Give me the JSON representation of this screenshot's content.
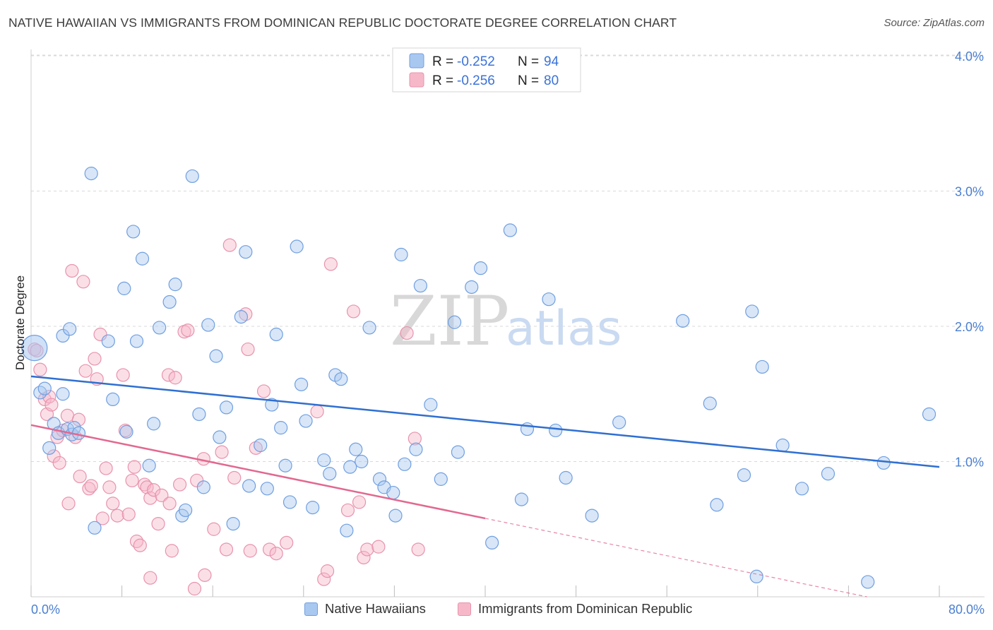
{
  "title": "NATIVE HAWAIIAN VS IMMIGRANTS FROM DOMINICAN REPUBLIC DOCTORATE DEGREE CORRELATION CHART",
  "source": "Source: ZipAtlas.com",
  "watermark": {
    "zip": "ZIP",
    "atlas": "atlas"
  },
  "colors": {
    "blue_fill": "#a9c8f0",
    "blue_stroke": "#6f9fe0",
    "blue_line": "#2f6fd1",
    "pink_fill": "#f6b8c9",
    "pink_stroke": "#e893ad",
    "pink_line": "#e2688f",
    "grid": "#d9d9d9",
    "tick_label": "#4a7fd0"
  },
  "legend": {
    "rows": [
      {
        "r_label": "R =",
        "r_value": "-0.252",
        "n_label": "N =",
        "n_value": "94"
      },
      {
        "r_label": "R =",
        "r_value": "-0.256",
        "n_label": "N =",
        "n_value": "80"
      }
    ]
  },
  "bottom_legend": {
    "series1": "Native Hawaiians",
    "series2": "Immigrants from Dominican Republic"
  },
  "chart_data": {
    "type": "scatter",
    "xlabel": "",
    "ylabel": "Doctorate Degree",
    "xlim": [
      0,
      80
    ],
    "ylim": [
      0,
      4.2
    ],
    "x_tick_labels": [
      "0.0%",
      "80.0%"
    ],
    "y_ticks": [
      1,
      2,
      3,
      4
    ],
    "y_tick_labels": [
      "1.0%",
      "2.0%",
      "3.0%",
      "4.0%"
    ],
    "grid": true,
    "series": [
      {
        "name": "Native Hawaiians",
        "r": -0.252,
        "n": 94,
        "trend": {
          "x0": 0,
          "y0": 1.63,
          "x1": 80,
          "y1": 0.96
        },
        "points": [
          [
            0.3,
            1.84
          ],
          [
            0.8,
            1.51
          ],
          [
            1.2,
            1.54
          ],
          [
            1.6,
            1.1
          ],
          [
            2.0,
            1.28
          ],
          [
            2.4,
            1.21
          ],
          [
            2.8,
            1.93
          ],
          [
            2.8,
            1.5
          ],
          [
            3.2,
            1.24
          ],
          [
            3.4,
            1.98
          ],
          [
            3.6,
            1.2
          ],
          [
            3.8,
            1.25
          ],
          [
            4.2,
            1.21
          ],
          [
            5.3,
            3.13
          ],
          [
            5.6,
            0.51
          ],
          [
            6.8,
            1.89
          ],
          [
            7.2,
            1.46
          ],
          [
            8.2,
            2.28
          ],
          [
            8.4,
            1.22
          ],
          [
            9.0,
            2.7
          ],
          [
            9.3,
            1.89
          ],
          [
            9.8,
            2.5
          ],
          [
            10.4,
            0.97
          ],
          [
            10.8,
            1.28
          ],
          [
            11.3,
            1.99
          ],
          [
            12.2,
            2.18
          ],
          [
            12.7,
            2.31
          ],
          [
            13.3,
            0.6
          ],
          [
            13.6,
            0.64
          ],
          [
            14.2,
            3.11
          ],
          [
            14.8,
            1.35
          ],
          [
            15.2,
            0.81
          ],
          [
            15.6,
            2.01
          ],
          [
            16.3,
            1.78
          ],
          [
            16.6,
            1.18
          ],
          [
            17.2,
            1.4
          ],
          [
            17.8,
            0.54
          ],
          [
            18.5,
            2.07
          ],
          [
            18.9,
            2.55
          ],
          [
            19.2,
            0.82
          ],
          [
            20.2,
            1.12
          ],
          [
            20.8,
            0.8
          ],
          [
            21.2,
            1.42
          ],
          [
            21.6,
            1.94
          ],
          [
            22.0,
            1.25
          ],
          [
            22.4,
            0.97
          ],
          [
            22.8,
            0.7
          ],
          [
            23.4,
            2.59
          ],
          [
            23.8,
            1.57
          ],
          [
            24.2,
            1.3
          ],
          [
            24.8,
            0.66
          ],
          [
            25.8,
            1.01
          ],
          [
            26.3,
            0.91
          ],
          [
            26.8,
            1.64
          ],
          [
            27.3,
            1.61
          ],
          [
            27.8,
            0.49
          ],
          [
            28.1,
            0.96
          ],
          [
            28.6,
            1.09
          ],
          [
            29.1,
            1.0
          ],
          [
            29.8,
            1.99
          ],
          [
            30.7,
            0.87
          ],
          [
            31.1,
            0.81
          ],
          [
            31.9,
            0.77
          ],
          [
            32.1,
            0.6
          ],
          [
            32.6,
            2.53
          ],
          [
            32.9,
            0.98
          ],
          [
            33.9,
            1.09
          ],
          [
            34.3,
            2.3
          ],
          [
            35.2,
            1.42
          ],
          [
            36.1,
            0.87
          ],
          [
            37.3,
            2.03
          ],
          [
            37.6,
            1.07
          ],
          [
            38.8,
            2.29
          ],
          [
            39.6,
            2.43
          ],
          [
            40.6,
            0.4
          ],
          [
            42.2,
            2.71
          ],
          [
            43.2,
            0.72
          ],
          [
            43.7,
            1.24
          ],
          [
            45.6,
            2.2
          ],
          [
            46.2,
            1.23
          ],
          [
            47.1,
            0.88
          ],
          [
            49.4,
            0.6
          ],
          [
            51.8,
            1.29
          ],
          [
            57.4,
            2.04
          ],
          [
            59.8,
            1.43
          ],
          [
            60.4,
            0.68
          ],
          [
            62.8,
            0.9
          ],
          [
            63.5,
            2.11
          ],
          [
            63.9,
            0.15
          ],
          [
            64.4,
            1.7
          ],
          [
            66.2,
            1.12
          ],
          [
            67.9,
            0.8
          ],
          [
            70.2,
            0.91
          ],
          [
            73.7,
            0.11
          ],
          [
            75.1,
            0.99
          ],
          [
            79.1,
            1.35
          ]
        ]
      },
      {
        "name": "Immigrants from Dominican Republic",
        "r": -0.256,
        "n": 80,
        "trend": {
          "x0": 0,
          "y0": 1.27,
          "x1": 40,
          "y1": 0.58,
          "dash_to_x": 80,
          "dash_to_y": -0.11
        },
        "points": [
          [
            0.3,
            1.83
          ],
          [
            0.5,
            1.82
          ],
          [
            0.8,
            1.68
          ],
          [
            1.2,
            1.46
          ],
          [
            1.4,
            1.35
          ],
          [
            1.6,
            1.48
          ],
          [
            1.8,
            1.42
          ],
          [
            2.0,
            1.04
          ],
          [
            2.3,
            1.18
          ],
          [
            2.5,
            0.99
          ],
          [
            2.8,
            1.23
          ],
          [
            3.2,
            1.34
          ],
          [
            3.3,
            0.69
          ],
          [
            3.6,
            2.41
          ],
          [
            3.9,
            1.18
          ],
          [
            4.2,
            1.31
          ],
          [
            4.3,
            0.89
          ],
          [
            4.6,
            2.33
          ],
          [
            4.8,
            1.67
          ],
          [
            5.1,
            0.8
          ],
          [
            5.3,
            0.82
          ],
          [
            5.6,
            1.76
          ],
          [
            5.8,
            1.61
          ],
          [
            6.1,
            1.94
          ],
          [
            6.3,
            0.58
          ],
          [
            6.6,
            0.95
          ],
          [
            6.9,
            0.81
          ],
          [
            7.2,
            0.69
          ],
          [
            7.6,
            0.6
          ],
          [
            8.1,
            1.64
          ],
          [
            8.3,
            1.23
          ],
          [
            8.6,
            0.61
          ],
          [
            8.9,
            0.86
          ],
          [
            9.1,
            0.96
          ],
          [
            9.3,
            0.41
          ],
          [
            9.6,
            0.38
          ],
          [
            10.0,
            0.83
          ],
          [
            10.2,
            0.81
          ],
          [
            10.5,
            0.73
          ],
          [
            10.5,
            0.14
          ],
          [
            10.8,
            0.79
          ],
          [
            11.2,
            0.54
          ],
          [
            11.5,
            0.75
          ],
          [
            12.1,
            1.64
          ],
          [
            12.2,
            0.69
          ],
          [
            12.4,
            0.34
          ],
          [
            12.7,
            1.62
          ],
          [
            13.1,
            0.83
          ],
          [
            13.5,
            1.96
          ],
          [
            13.8,
            1.97
          ],
          [
            14.4,
            0.06
          ],
          [
            14.6,
            0.86
          ],
          [
            15.2,
            1.02
          ],
          [
            15.3,
            0.16
          ],
          [
            16.1,
            0.5
          ],
          [
            16.8,
            1.07
          ],
          [
            17.2,
            0.35
          ],
          [
            17.5,
            2.6
          ],
          [
            17.9,
            0.88
          ],
          [
            18.9,
            2.09
          ],
          [
            19.1,
            1.83
          ],
          [
            19.3,
            0.34
          ],
          [
            19.8,
            1.1
          ],
          [
            20.5,
            1.52
          ],
          [
            21.0,
            0.35
          ],
          [
            21.6,
            0.32
          ],
          [
            22.5,
            0.4
          ],
          [
            25.2,
            1.37
          ],
          [
            25.8,
            0.13
          ],
          [
            26.1,
            0.19
          ],
          [
            26.4,
            2.46
          ],
          [
            27.9,
            0.64
          ],
          [
            28.4,
            2.11
          ],
          [
            28.9,
            0.7
          ],
          [
            29.3,
            0.29
          ],
          [
            29.6,
            0.35
          ],
          [
            30.6,
            0.37
          ],
          [
            33.1,
            1.95
          ],
          [
            33.8,
            1.17
          ],
          [
            34.1,
            0.35
          ]
        ]
      }
    ]
  }
}
